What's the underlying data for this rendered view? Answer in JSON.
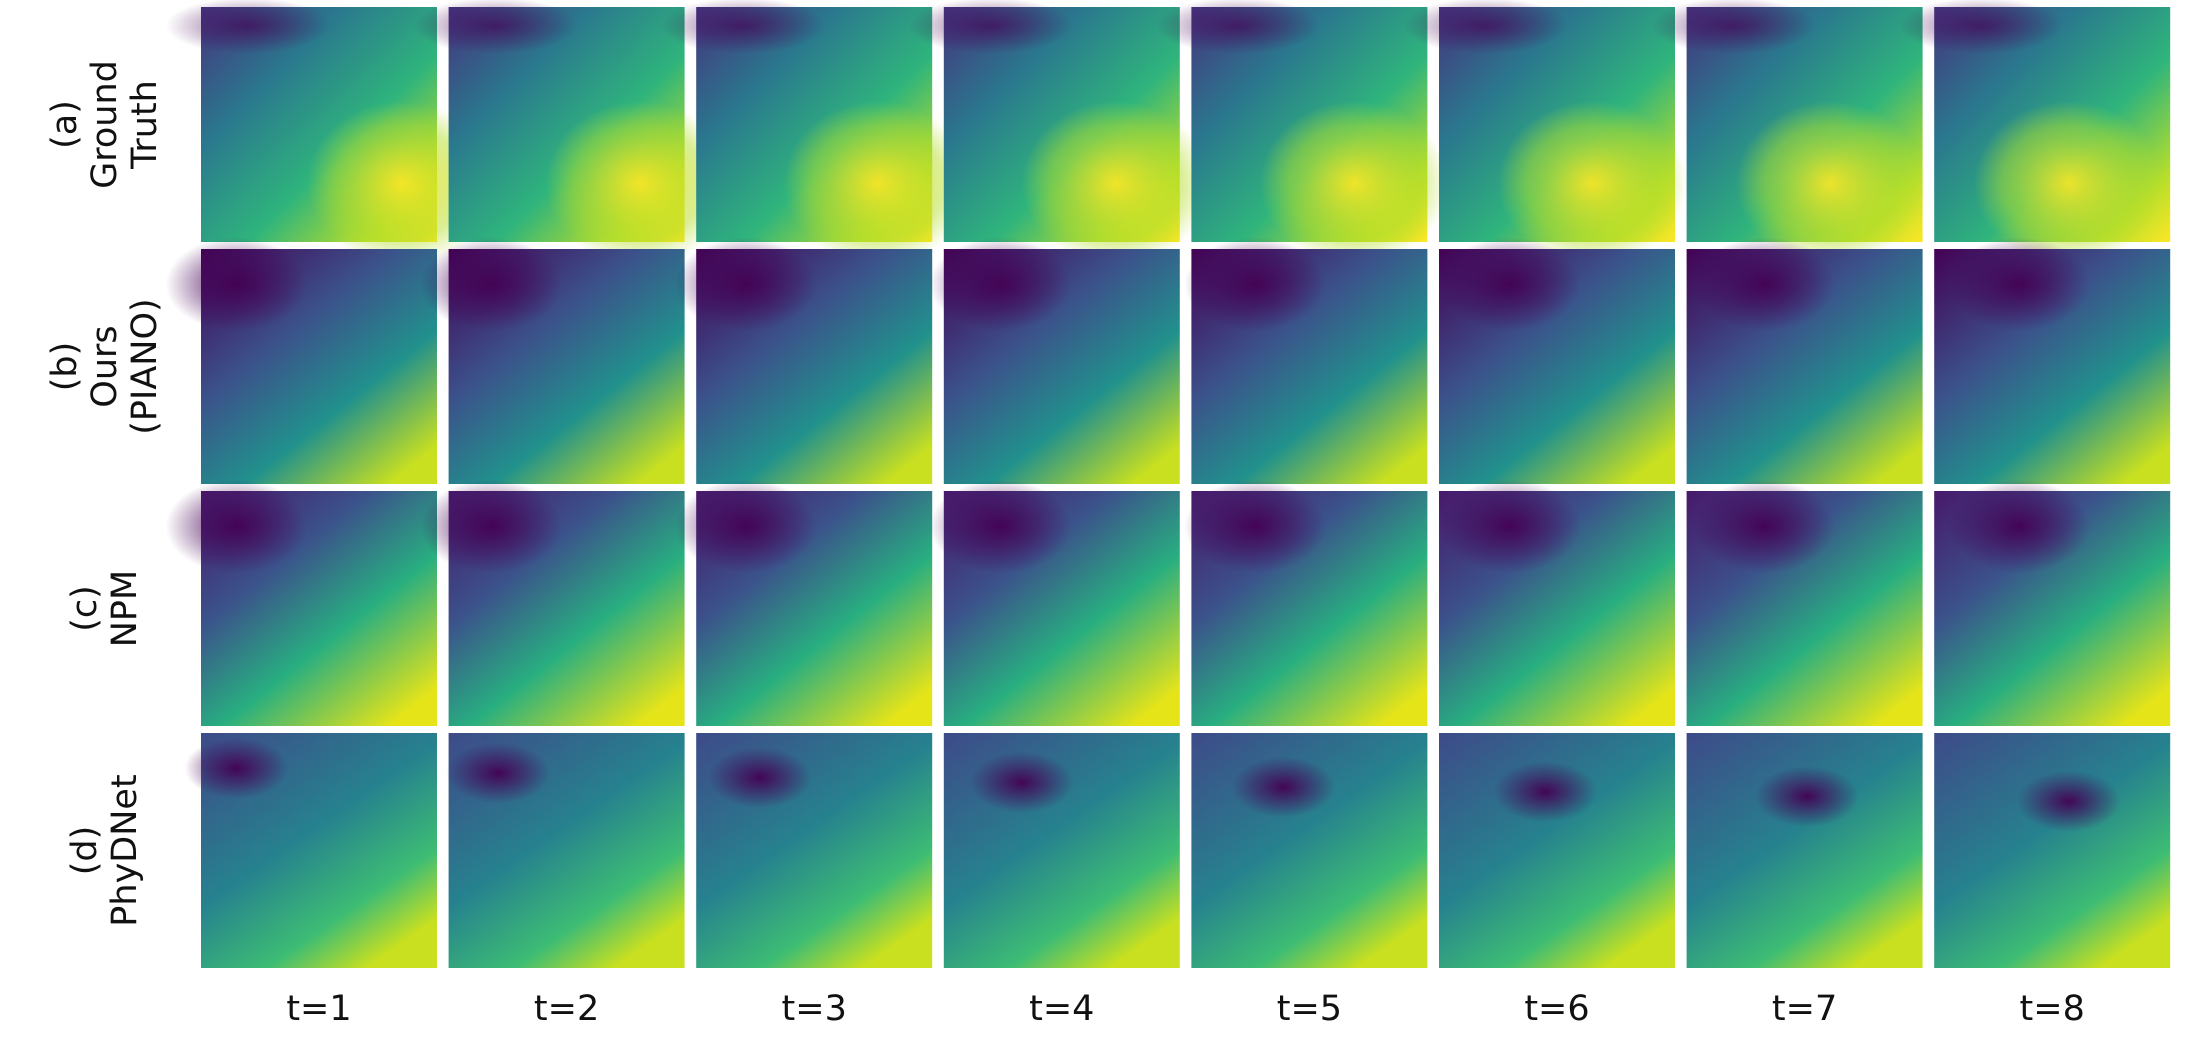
{
  "figure": {
    "rows": [
      {
        "lines": [
          "(a)",
          "Ground",
          "Truth"
        ]
      },
      {
        "lines": [
          "(b)",
          "Ours",
          "(PIANO)"
        ]
      },
      {
        "lines": [
          "(c)",
          "NPM"
        ]
      },
      {
        "lines": [
          "(d)",
          "PhyDNet"
        ]
      }
    ],
    "columns": [
      "t=1",
      "t=2",
      "t=3",
      "t=4",
      "t=5",
      "t=6",
      "t=7",
      "t=8"
    ]
  }
}
